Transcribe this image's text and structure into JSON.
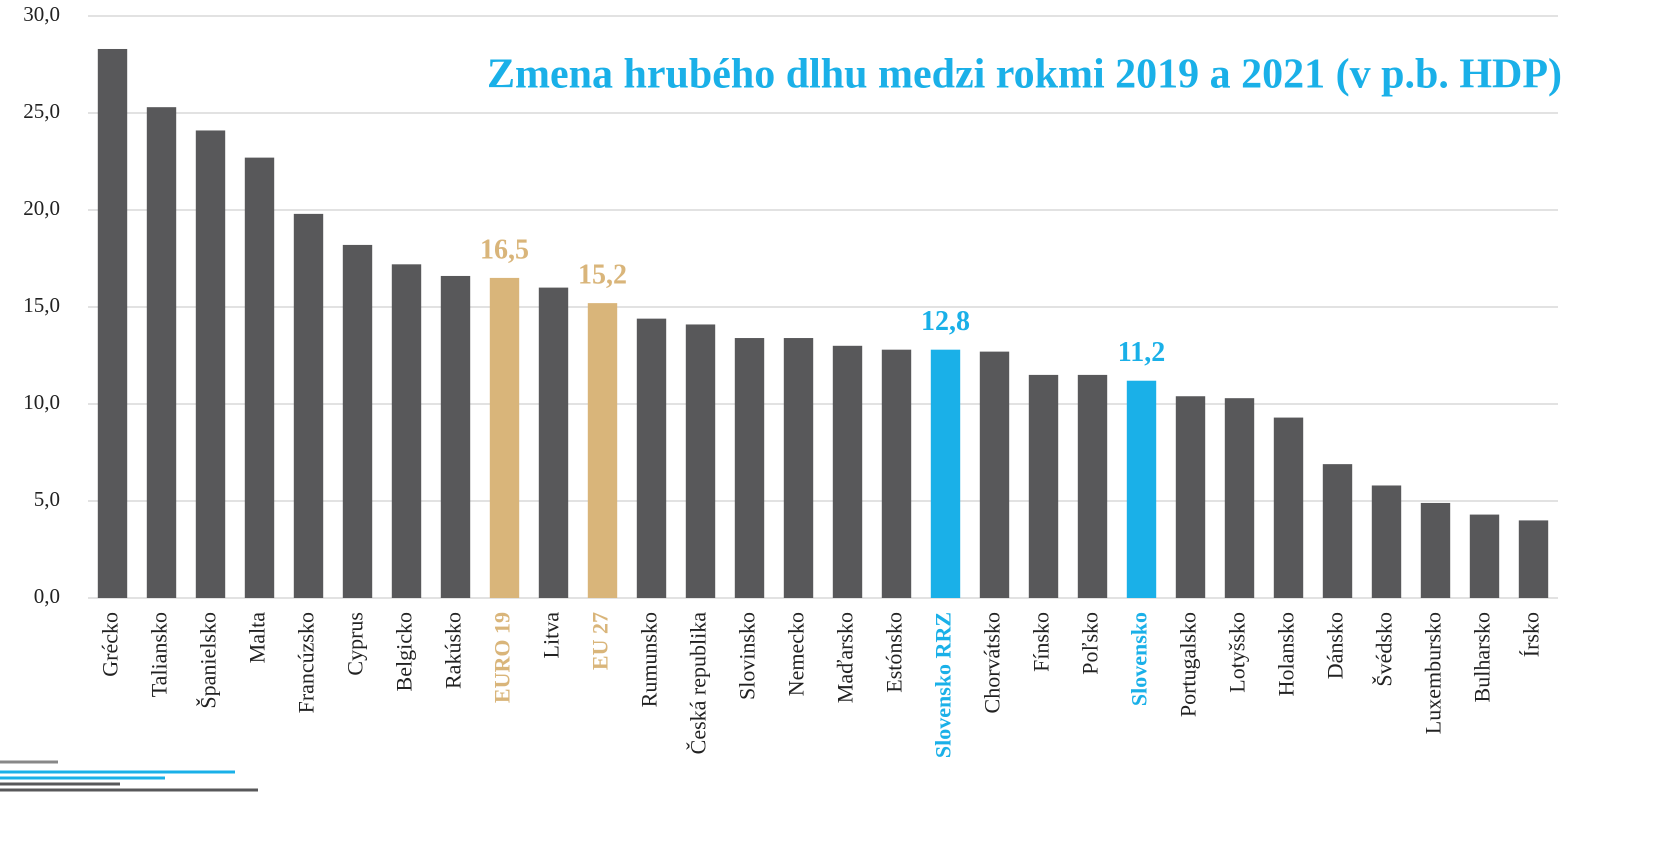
{
  "chart_data": {
    "type": "bar",
    "title": "Zmena hrubého dlhu medzi rokmi 2019 a 2021 (v p.b. HDP)",
    "categories": [
      "Grécko",
      "Taliansko",
      "Španielsko",
      "Malta",
      "Francúzsko",
      "Cyprus",
      "Belgicko",
      "Rakúsko",
      "EURO 19",
      "Litva",
      "EU 27",
      "Rumunsko",
      "Česká republika",
      "Slovinsko",
      "Nemecko",
      "Maďarsko",
      "Estónsko",
      "Slovensko RRZ",
      "Chorvátsko",
      "Fínsko",
      "Poľsko",
      "Slovensko",
      "Portugalsko",
      "Lotyšsko",
      "Holansko",
      "Dánsko",
      "Švédsko",
      "Luxembursko",
      "Bulharsko",
      "Írsko"
    ],
    "values": [
      28.3,
      25.3,
      24.1,
      22.7,
      19.8,
      18.2,
      17.2,
      16.6,
      16.5,
      16.0,
      15.2,
      14.4,
      14.1,
      13.4,
      13.4,
      13.0,
      12.8,
      12.8,
      12.7,
      11.5,
      11.5,
      11.2,
      10.4,
      10.3,
      9.3,
      6.9,
      5.8,
      4.9,
      4.3,
      4.0
    ],
    "value_labels": [
      null,
      null,
      null,
      null,
      null,
      null,
      null,
      null,
      "16,5",
      null,
      "15,2",
      null,
      null,
      null,
      null,
      null,
      null,
      "12,8",
      null,
      null,
      null,
      "11,2",
      null,
      null,
      null,
      null,
      null,
      null,
      null,
      null
    ],
    "colors": [
      "#58585a",
      "#58585a",
      "#58585a",
      "#58585a",
      "#58585a",
      "#58585a",
      "#58585a",
      "#58585a",
      "#d9b57a",
      "#58585a",
      "#d9b57a",
      "#58585a",
      "#58585a",
      "#58585a",
      "#58585a",
      "#58585a",
      "#58585a",
      "#1ab0e8",
      "#58585a",
      "#58585a",
      "#58585a",
      "#1ab0e8",
      "#58585a",
      "#58585a",
      "#58585a",
      "#58585a",
      "#58585a",
      "#58585a",
      "#58585a",
      "#58585a"
    ],
    "default_color": "#58585a",
    "ylim": [
      0,
      30
    ],
    "yticks": [
      {
        "value": 0,
        "label": "0,0"
      },
      {
        "value": 5,
        "label": "5,0"
      },
      {
        "value": 10,
        "label": "10,0"
      },
      {
        "value": 15,
        "label": "15,0"
      },
      {
        "value": 20,
        "label": "20,0"
      },
      {
        "value": 25,
        "label": "25,0"
      },
      {
        "value": 30,
        "label": "30,0"
      }
    ],
    "grid": true
  }
}
